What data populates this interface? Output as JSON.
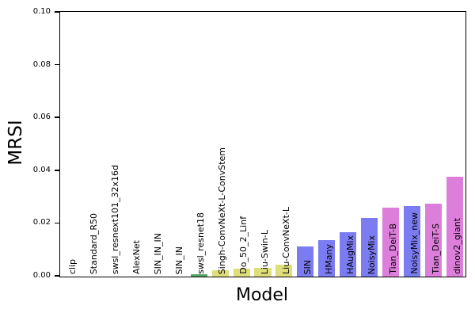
{
  "chart_data": {
    "type": "bar",
    "title": "",
    "xlabel": "Model",
    "ylabel": "MRSI",
    "ylim": [
      0,
      0.1
    ],
    "yticks": [
      0.0,
      0.02,
      0.04,
      0.06,
      0.08,
      0.1
    ],
    "ytick_labels": [
      "0.00",
      "0.02",
      "0.04",
      "0.06",
      "0.08",
      "0.10"
    ],
    "grid": false,
    "legend_position": "none",
    "bar_label_rotation_deg": 90,
    "categories": [
      "clip",
      "Standard_R50",
      "swsl_resnext101_32x16d",
      "AlexNet",
      "SIN_IN_IN",
      "SIN_IN",
      "swsl_resnet18",
      "Singh-ConvNeXt-L-ConvStem",
      "Do_50_2_Linf",
      "Liu-Swin-L",
      "Liu-ConvNeXt-L",
      "SIN",
      "HMany",
      "HAugMix",
      "NoisyMix",
      "Tian_DeiT-B",
      "NoisyMix_new",
      "Tian_DeiT-S",
      "dinov2_giant"
    ],
    "values": [
      0.0,
      0.0,
      0.0,
      0.0,
      0.0,
      0.0,
      0.0008,
      0.0023,
      0.0029,
      0.0032,
      0.0044,
      0.0113,
      0.0137,
      0.0167,
      0.0221,
      0.026,
      0.0266,
      0.0275,
      0.0377
    ],
    "bar_colors": [
      null,
      null,
      null,
      null,
      null,
      null,
      "#55a868",
      "#dede7c",
      "#dede7c",
      "#dede7c",
      "#dede7c",
      "#7b7bf2",
      "#7b7bf2",
      "#7b7bf2",
      "#7b7bf2",
      "#dd7fda",
      "#7b7bf2",
      "#dd7fda",
      "#dd7fda"
    ]
  },
  "colors": {
    "axis": "#000000",
    "text": "#000000",
    "background": "#ffffff"
  }
}
